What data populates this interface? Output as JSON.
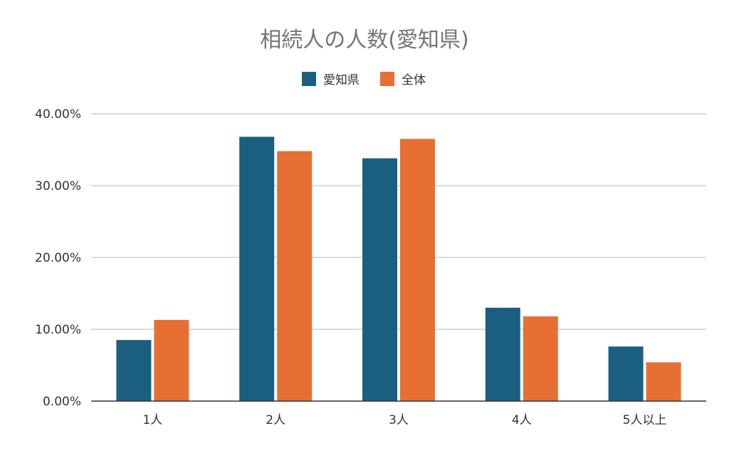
{
  "chart_data": {
    "type": "bar",
    "title": "相続人の人数(愛知県)",
    "categories": [
      "1人",
      "2人",
      "3人",
      "4人",
      "5人以上"
    ],
    "series": [
      {
        "name": "愛知県",
        "color": "#1a5f80",
        "values": [
          8.5,
          36.8,
          33.8,
          13.0,
          7.6
        ]
      },
      {
        "name": "全体",
        "color": "#e86f34",
        "values": [
          11.3,
          34.8,
          36.5,
          11.8,
          5.4
        ]
      }
    ],
    "ylim": [
      0,
      40
    ],
    "yticks": [
      "0.00%",
      "10.00%",
      "20.00%",
      "30.00%",
      "40.00%"
    ],
    "grid": true,
    "legend_position": "top-center"
  }
}
